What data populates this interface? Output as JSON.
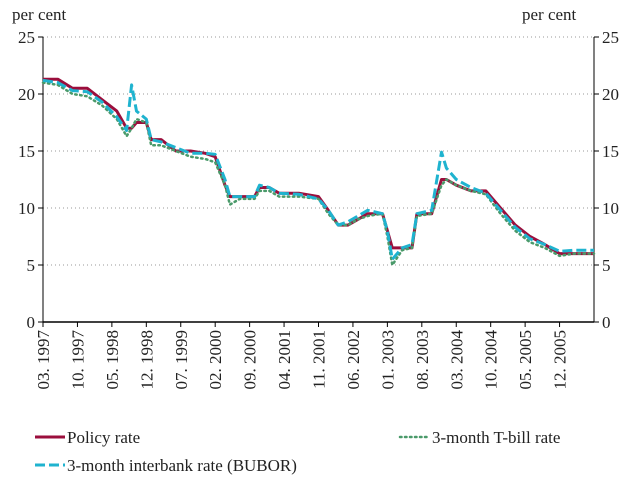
{
  "chart_data": {
    "type": "line",
    "y_label": "per cent",
    "y2_label": "per cent",
    "x": [
      "1997-03",
      "1997-06",
      "1997-09",
      "1997-12",
      "1998-03",
      "1998-06",
      "1998-08",
      "1998-09",
      "1998-10",
      "1998-12",
      "1999-01",
      "1999-03",
      "1999-06",
      "1999-09",
      "1999-12",
      "2000-02",
      "2000-04",
      "2000-05",
      "2000-07",
      "2000-10",
      "2000-11",
      "2001-01",
      "2001-03",
      "2001-07",
      "2001-11",
      "2002-01",
      "2002-03",
      "2002-05",
      "2002-07",
      "2002-09",
      "2002-12",
      "2003-01",
      "2003-02",
      "2003-04",
      "2003-06",
      "2003-07",
      "2003-10",
      "2003-12",
      "2004-01",
      "2004-03",
      "2004-06",
      "2004-09",
      "2004-12",
      "2005-03",
      "2005-06",
      "2005-09",
      "2005-12",
      "2006-03",
      "2006-05",
      "2006-07"
    ],
    "series": [
      {
        "name": "Policy rate",
        "color": "#9b0e3c",
        "style": "solid",
        "values": [
          21.3,
          21.3,
          20.5,
          20.5,
          19.5,
          18.5,
          17.0,
          17.0,
          17.5,
          17.5,
          16.0,
          16.0,
          15.0,
          15.0,
          14.8,
          14.5,
          12.0,
          11.0,
          11.0,
          11.0,
          11.8,
          11.8,
          11.3,
          11.3,
          11.0,
          9.8,
          8.5,
          8.5,
          9.0,
          9.5,
          9.5,
          8.0,
          6.5,
          6.5,
          6.5,
          9.5,
          9.5,
          12.5,
          12.5,
          12.0,
          11.5,
          11.5,
          10.0,
          8.5,
          7.5,
          6.8,
          6.0,
          6.0,
          6.0,
          6.0
        ]
      },
      {
        "name": "3-month T-bill rate",
        "color": "#4a9a6a",
        "style": "dotted",
        "values": [
          21.0,
          20.8,
          20.0,
          19.8,
          19.0,
          17.8,
          16.3,
          17.0,
          17.8,
          17.5,
          15.5,
          15.5,
          15.0,
          14.5,
          14.3,
          14.0,
          12.0,
          10.3,
          10.8,
          10.8,
          11.5,
          11.5,
          11.0,
          11.0,
          10.8,
          9.5,
          8.5,
          8.5,
          9.0,
          9.3,
          9.5,
          7.5,
          5.0,
          6.3,
          6.5,
          9.3,
          9.5,
          12.0,
          12.5,
          12.0,
          11.5,
          11.2,
          9.5,
          8.0,
          7.0,
          6.5,
          5.8,
          6.0,
          6.0,
          6.0
        ]
      },
      {
        "name": "3-month interbank rate (BUBOR)",
        "color": "#1fb3cf",
        "style": "dashed",
        "values": [
          21.2,
          21.0,
          20.3,
          20.2,
          19.3,
          18.0,
          16.8,
          20.8,
          18.5,
          17.8,
          16.0,
          15.8,
          15.3,
          14.8,
          14.8,
          14.7,
          12.5,
          11.0,
          11.0,
          11.0,
          12.0,
          11.8,
          11.3,
          11.2,
          10.8,
          9.8,
          8.5,
          8.8,
          9.3,
          9.8,
          9.5,
          8.0,
          5.5,
          6.5,
          6.8,
          9.5,
          9.8,
          14.9,
          13.5,
          12.5,
          11.8,
          11.3,
          9.8,
          8.3,
          7.3,
          6.8,
          6.2,
          6.3,
          6.3,
          6.3
        ]
      }
    ],
    "xlim": [
      "1997-03",
      "2006-07"
    ],
    "xticks": [
      {
        "value": "1997-03",
        "label": "03. 1997"
      },
      {
        "value": "1997-10",
        "label": "10. 1997"
      },
      {
        "value": "1998-05",
        "label": "05. 1998"
      },
      {
        "value": "1998-12",
        "label": "12. 1998"
      },
      {
        "value": "1999-07",
        "label": "07. 1999"
      },
      {
        "value": "2000-02",
        "label": "02. 2000"
      },
      {
        "value": "2000-09",
        "label": "09. 2000"
      },
      {
        "value": "2001-04",
        "label": "04. 2001"
      },
      {
        "value": "2001-11",
        "label": "11. 2001"
      },
      {
        "value": "2002-06",
        "label": "06. 2002"
      },
      {
        "value": "2003-01",
        "label": "01. 2003"
      },
      {
        "value": "2003-08",
        "label": "08. 2003"
      },
      {
        "value": "2004-03",
        "label": "03. 2004"
      },
      {
        "value": "2004-10",
        "label": "10. 2004"
      },
      {
        "value": "2005-05",
        "label": "05. 2005"
      },
      {
        "value": "2005-12",
        "label": "12. 2005"
      }
    ],
    "ylim": [
      0,
      25
    ],
    "yticks": [
      0,
      5,
      10,
      15,
      20,
      25
    ],
    "y2lim": [
      0,
      25
    ],
    "y2ticks": [
      0,
      5,
      10,
      15,
      20,
      25
    ],
    "grid": true
  }
}
